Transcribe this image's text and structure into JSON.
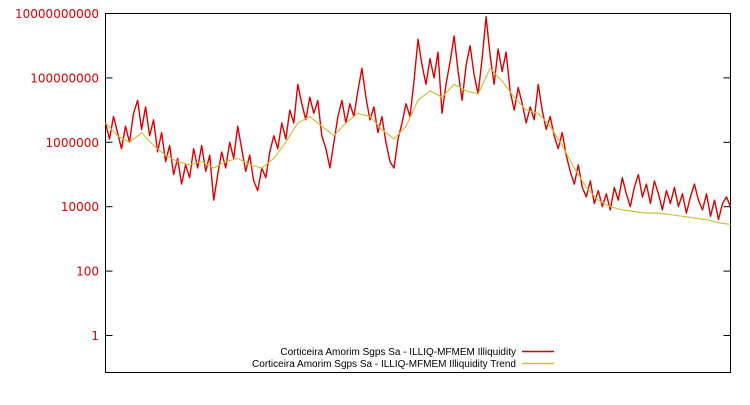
{
  "page": {
    "background": "#ffffff"
  },
  "chart_data": {
    "type": "line",
    "title": "",
    "xlabel": "",
    "ylabel": "",
    "grid": false,
    "x_axis": {
      "label": "",
      "tick_labels_visible": false
    },
    "y_axis": {
      "label": "",
      "scale": "log10",
      "tick_label_color": "#dd0000",
      "range_log10": [
        -1.15,
        10
      ],
      "ticks": [
        {
          "label": "1",
          "log10": 0
        },
        {
          "label": "100",
          "log10": 2
        },
        {
          "label": "10000",
          "log10": 4
        },
        {
          "label": "1000000",
          "log10": 6
        },
        {
          "label": "100000000",
          "log10": 8
        },
        {
          "label": "10000000000",
          "log10": 10
        }
      ]
    },
    "legend": {
      "position": "bottom-center",
      "background": "#ffffff"
    },
    "series": [
      {
        "name": "Corticeira Amorim Sgps Sa - ILLIQ-MFMEM Illiquidity",
        "color": "#dd0000",
        "stroke_width": 1.4,
        "values_log10": [
          6.6,
          6.1,
          6.8,
          6.3,
          5.8,
          6.5,
          6.0,
          6.9,
          7.3,
          6.4,
          7.1,
          6.2,
          6.7,
          5.7,
          6.3,
          5.4,
          5.9,
          5.0,
          5.5,
          4.7,
          5.3,
          4.9,
          5.8,
          5.2,
          5.9,
          5.1,
          5.6,
          4.2,
          5.0,
          5.7,
          5.2,
          6.0,
          5.5,
          6.5,
          5.8,
          5.1,
          5.6,
          4.8,
          4.5,
          5.2,
          4.9,
          5.7,
          6.2,
          5.8,
          6.6,
          6.1,
          7.0,
          6.6,
          7.8,
          7.2,
          6.7,
          7.4,
          6.9,
          7.3,
          6.2,
          5.8,
          5.2,
          6.0,
          6.8,
          7.3,
          6.6,
          7.2,
          6.8,
          7.6,
          8.3,
          7.4,
          6.7,
          7.1,
          6.3,
          6.8,
          6.0,
          5.4,
          5.2,
          6.1,
          6.6,
          7.2,
          6.8,
          7.9,
          9.2,
          8.4,
          7.8,
          8.6,
          8.0,
          8.8,
          6.9,
          7.8,
          8.5,
          9.3,
          8.2,
          7.3,
          8.4,
          9.0,
          8.1,
          7.5,
          8.6,
          9.9,
          8.7,
          7.8,
          8.9,
          8.2,
          8.8,
          7.6,
          7.0,
          7.7,
          7.2,
          6.6,
          7.1,
          6.7,
          7.8,
          7.0,
          6.4,
          6.8,
          6.2,
          5.8,
          6.3,
          5.6,
          5.1,
          4.7,
          5.3,
          4.6,
          4.3,
          4.8,
          4.1,
          4.5,
          4.0,
          4.4,
          3.9,
          4.6,
          4.2,
          4.9,
          4.4,
          4.0,
          4.6,
          5.0,
          4.3,
          4.7,
          4.1,
          4.8,
          4.4,
          3.9,
          4.5,
          4.1,
          4.6,
          4.0,
          4.4,
          3.8,
          4.3,
          4.7,
          4.2,
          3.9,
          4.4,
          3.7,
          4.2,
          3.6,
          4.1,
          4.3,
          4.0
        ]
      },
      {
        "name": "Corticeira Amorim Sgps Sa - ILLIQ-MFMEM Illiquidity Trend",
        "color": "#d0c040",
        "stroke_width": 1.2,
        "values_log10": [
          6.6,
          6.2,
          6.0,
          6.3,
          5.9,
          5.6,
          5.4,
          5.3,
          5.4,
          5.2,
          5.4,
          5.5,
          5.3,
          5.2,
          5.5,
          6.0,
          6.6,
          6.8,
          6.5,
          6.2,
          6.6,
          6.9,
          6.8,
          6.4,
          6.1,
          6.5,
          7.3,
          7.6,
          7.4,
          7.8,
          7.6,
          7.5,
          8.3,
          7.9,
          7.4,
          7.0,
          6.9,
          6.5,
          5.9,
          5.2,
          4.6,
          4.2,
          4.0,
          3.9,
          3.85,
          3.8,
          3.8,
          3.75,
          3.7,
          3.65,
          3.6,
          3.5,
          3.45
        ]
      }
    ]
  }
}
